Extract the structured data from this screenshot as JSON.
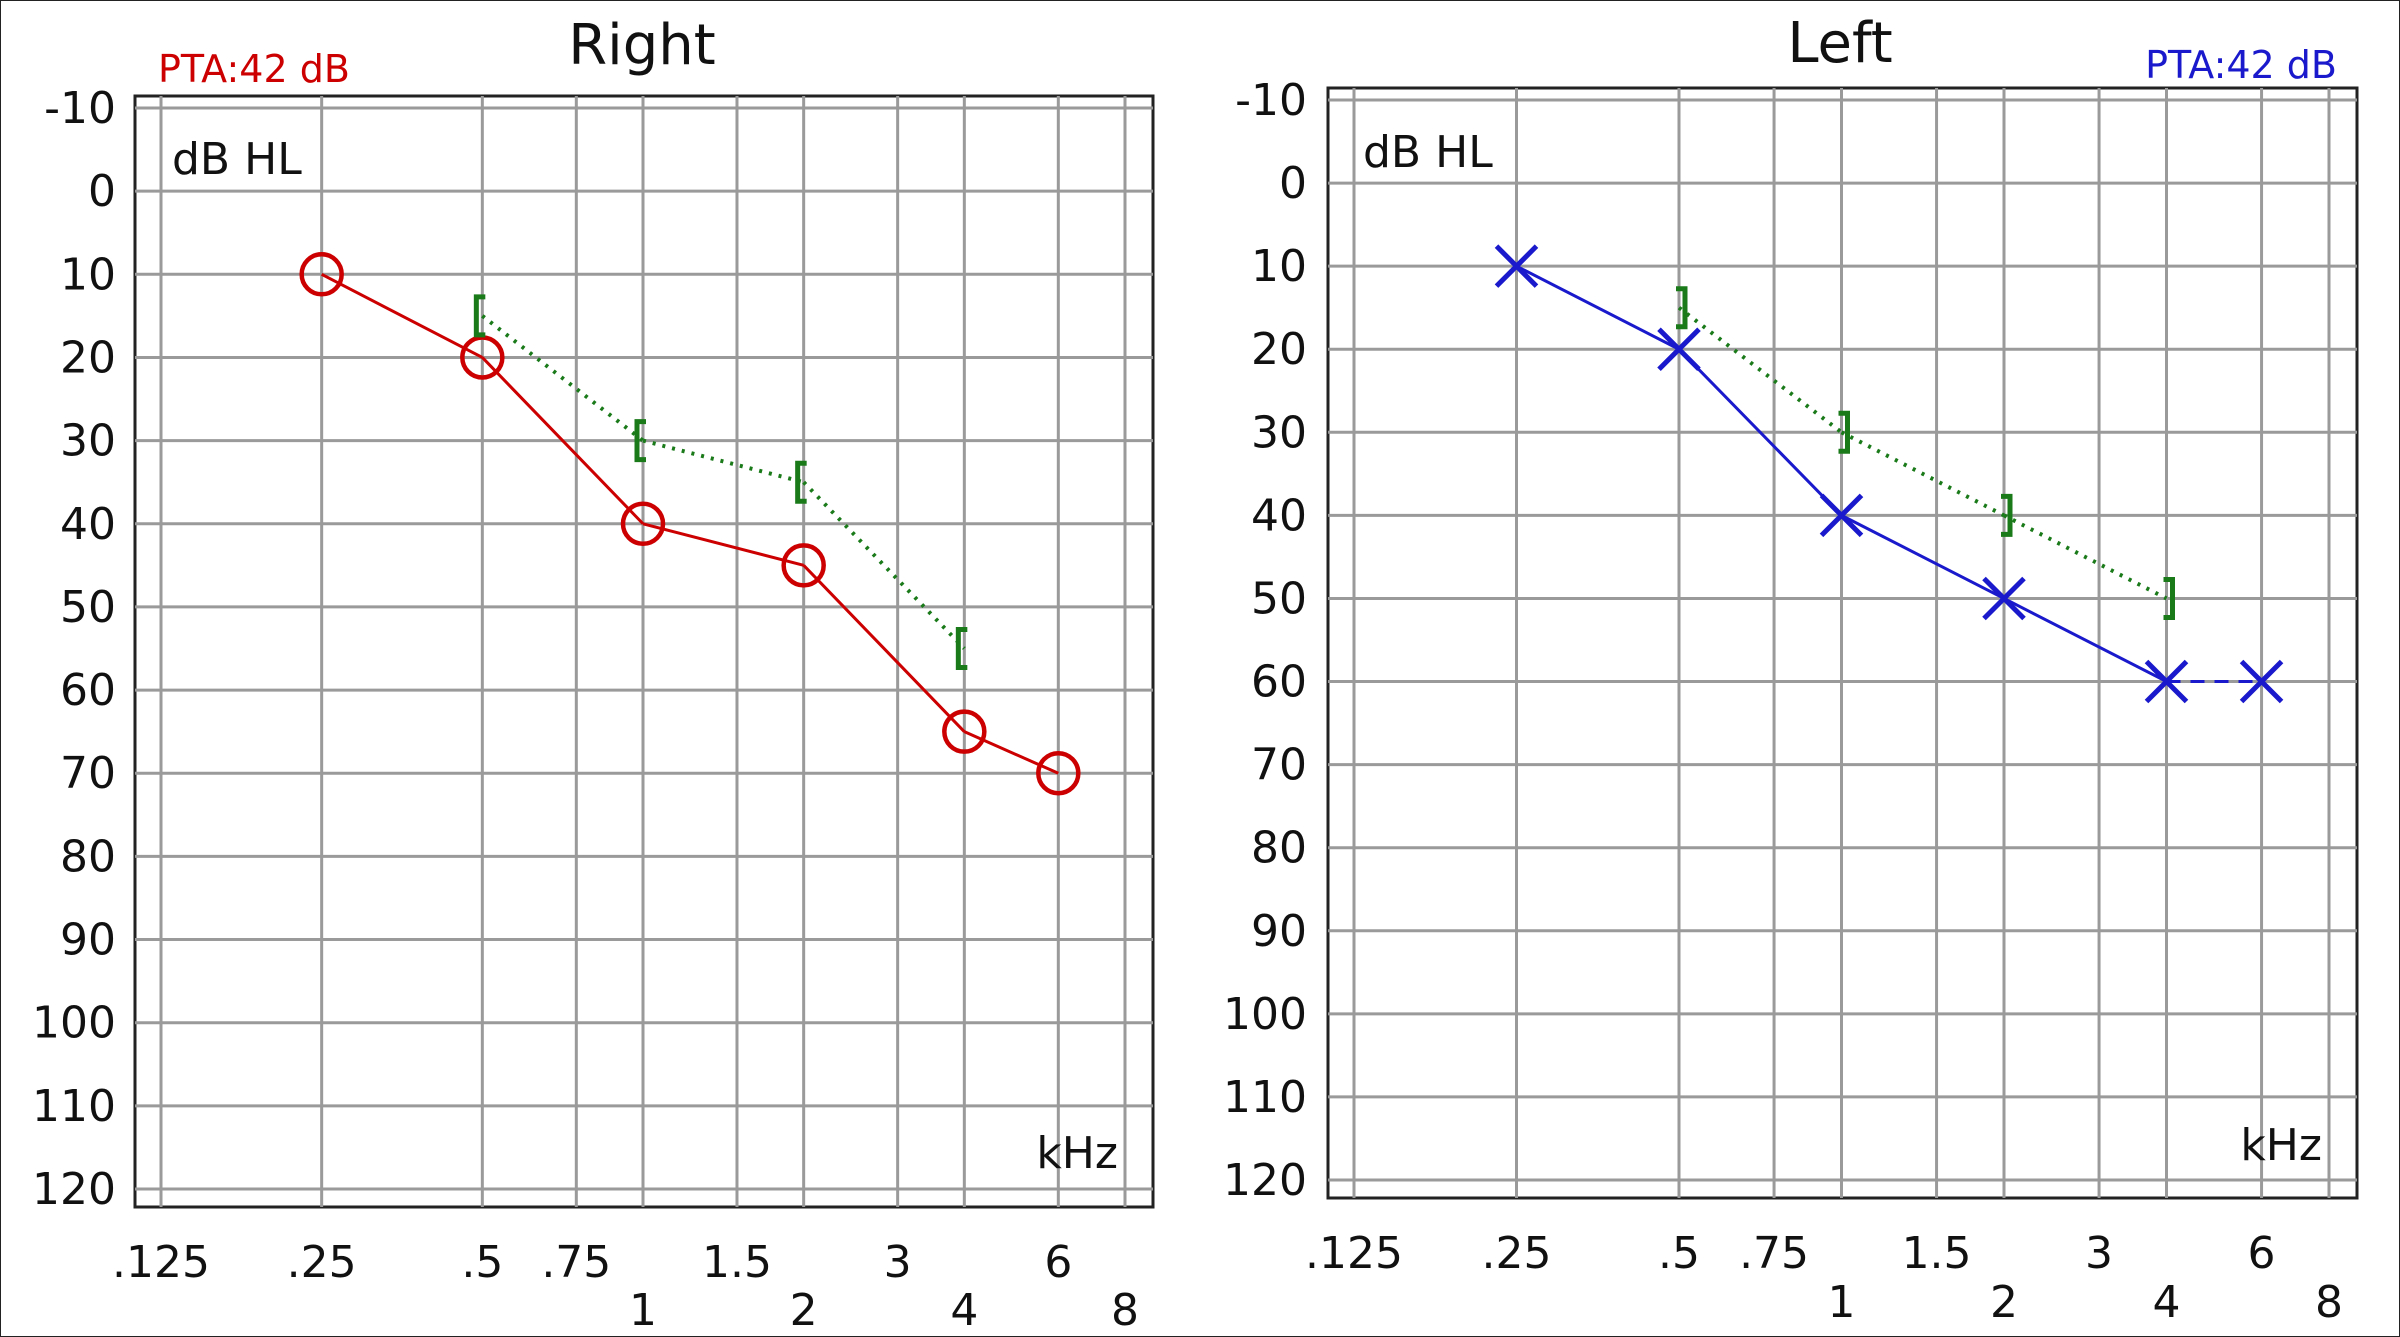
{
  "chart_data": [
    {
      "type": "line",
      "title": "Right",
      "pta_label": "PTA:42 dB",
      "ylabel": "dB HL",
      "xlabel": "kHz",
      "ylim": [
        -10,
        120
      ],
      "y_ticks": [
        "-10",
        "0",
        "10",
        "20",
        "30",
        "40",
        "50",
        "60",
        "70",
        "80",
        "90",
        "100",
        "110",
        "120"
      ],
      "x_ticks_top": [
        ".125",
        ".25",
        ".5",
        ".75",
        "1.5",
        "3",
        "6"
      ],
      "x_ticks_bottom": [
        "1",
        "2",
        "4",
        "8"
      ],
      "grid": true,
      "colors": {
        "air": "#cc0000",
        "bone": "#1a7a1a",
        "pta": "#cc0000"
      },
      "series": [
        {
          "symbol": "O",
          "line": "solid",
          "x": [
            0.25,
            0.5,
            1,
            2,
            4,
            6
          ],
          "values": [
            10,
            20,
            40,
            45,
            65,
            70
          ]
        },
        {
          "symbol": "[",
          "line": "dotted",
          "x": [
            0.5,
            1,
            2,
            4
          ],
          "values": [
            15,
            30,
            35,
            55
          ]
        }
      ]
    },
    {
      "type": "line",
      "title": "Left",
      "pta_label": "PTA:42 dB",
      "ylabel": "dB HL",
      "xlabel": "kHz",
      "ylim": [
        -10,
        120
      ],
      "y_ticks": [
        "-10",
        "0",
        "10",
        "20",
        "30",
        "40",
        "50",
        "60",
        "70",
        "80",
        "90",
        "100",
        "110",
        "120"
      ],
      "x_ticks_top": [
        ".125",
        ".25",
        ".5",
        ".75",
        "1.5",
        "3",
        "6"
      ],
      "x_ticks_bottom": [
        "1",
        "2",
        "4",
        "8"
      ],
      "grid": true,
      "colors": {
        "air": "#1a1acc",
        "bone": "#1a7a1a",
        "pta": "#1a1acc"
      },
      "series": [
        {
          "symbol": "X",
          "line": "solid",
          "x": [
            0.25,
            0.5,
            1,
            2,
            4,
            6
          ],
          "values": [
            10,
            20,
            40,
            50,
            60,
            60
          ]
        },
        {
          "symbol": "]",
          "line": "dotted",
          "x": [
            0.5,
            1,
            2,
            4
          ],
          "values": [
            15,
            30,
            40,
            50
          ]
        }
      ]
    }
  ]
}
